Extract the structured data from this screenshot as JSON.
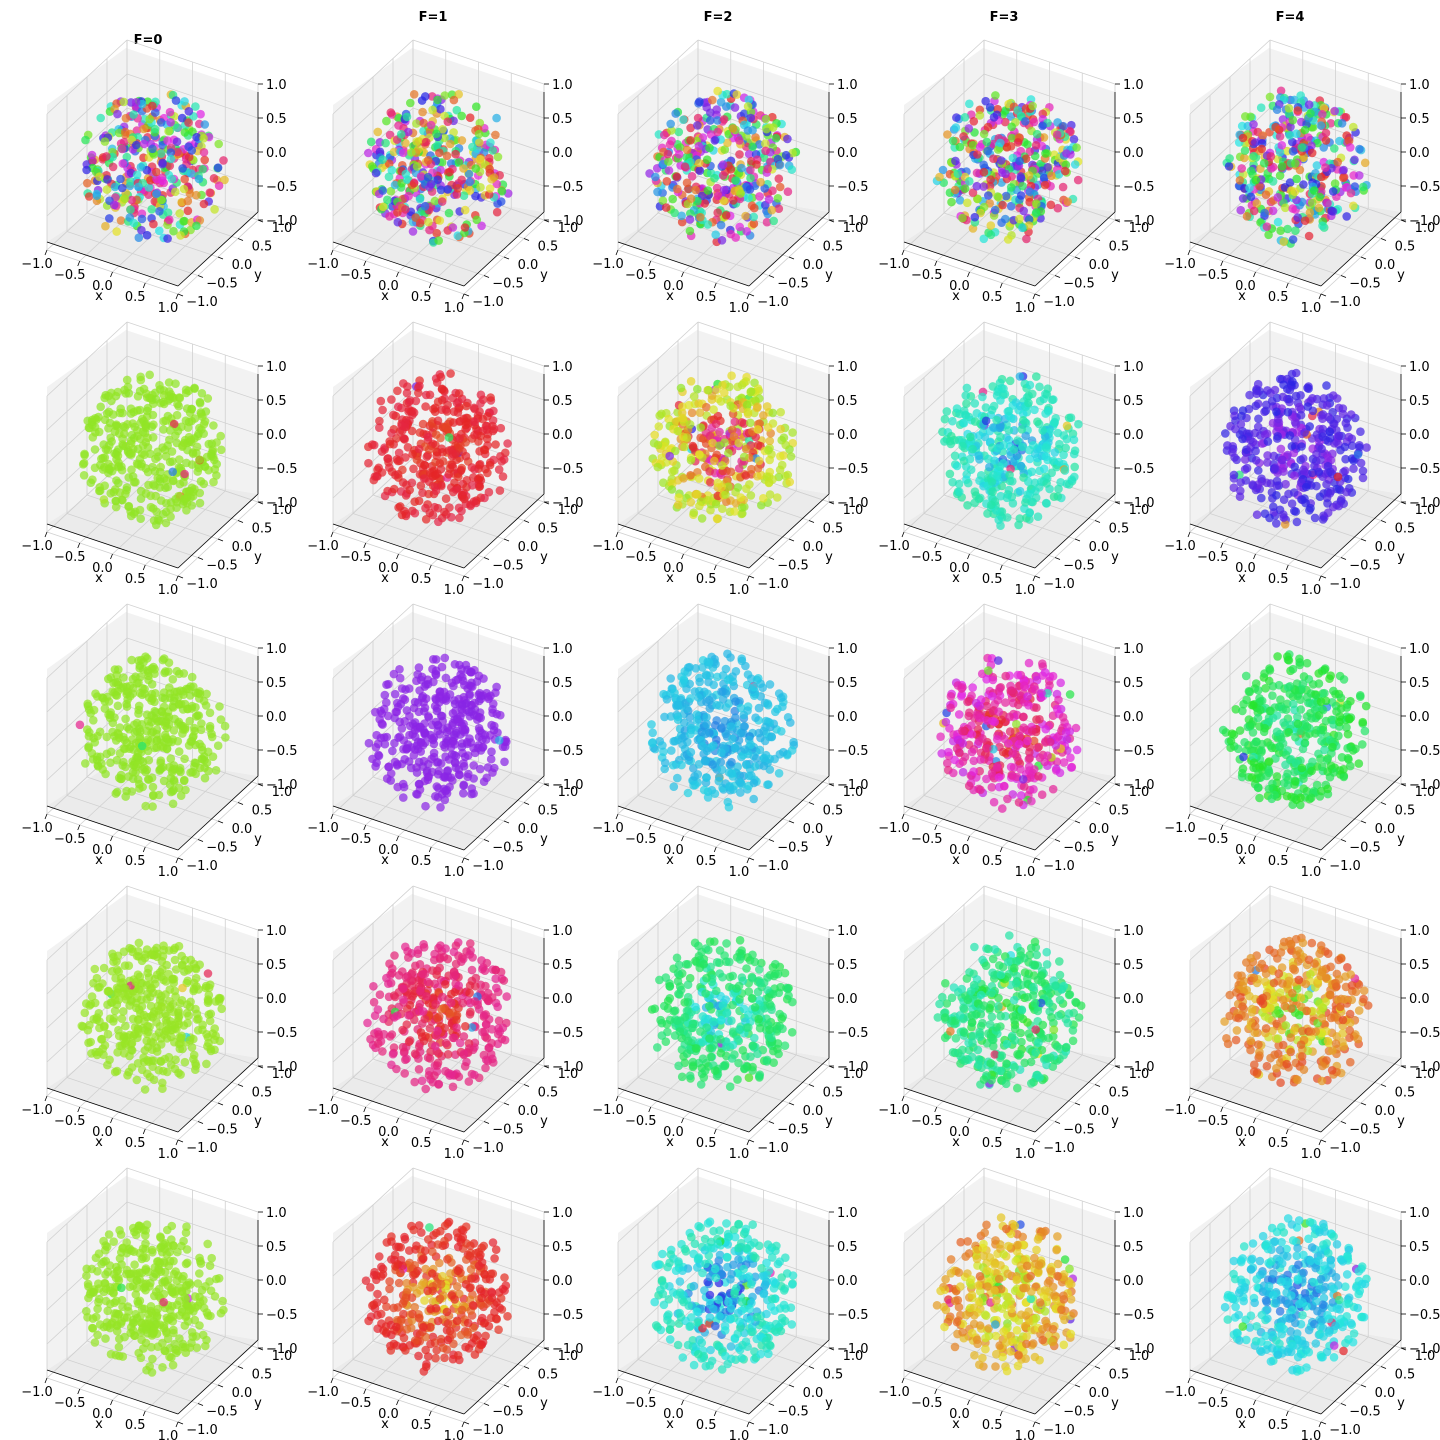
{
  "figure": {
    "column_titles": [
      "F=0",
      "F=1",
      "F=2",
      "F=3",
      "F=4"
    ]
  },
  "chart_data": {
    "type": "scatter",
    "layout": "5x5 grid of 3D scatter plots",
    "projection": "3d",
    "xlabel": "x",
    "ylabel": "y",
    "zlabel": "",
    "xlim": [
      -1.0,
      1.0
    ],
    "ylim": [
      -1.0,
      1.0
    ],
    "zlim": [
      -1.0,
      1.0
    ],
    "x_ticks": [
      "−1.0",
      "−0.5",
      "0.0",
      "0.5",
      "1.0"
    ],
    "y_ticks": [
      "−1.0",
      "−0.5",
      "0.0",
      "0.5",
      "1.0"
    ],
    "z_ticks": [
      "−1.0",
      "−0.5",
      "0.0",
      "0.5",
      "1.0"
    ],
    "grid": true,
    "points_per_panel": 380,
    "point_distribution": "approximately uniform inside unit sphere (radius ~0.97)",
    "panels": [
      {
        "row": 0,
        "col": 0,
        "hue_mode": "random",
        "hue_spread": 1.0
      },
      {
        "row": 0,
        "col": 1,
        "hue_mode": "random",
        "hue_spread": 1.0
      },
      {
        "row": 0,
        "col": 2,
        "hue_mode": "random",
        "hue_spread": 1.0
      },
      {
        "row": 0,
        "col": 3,
        "hue_mode": "random",
        "hue_spread": 1.0
      },
      {
        "row": 0,
        "col": 4,
        "hue_mode": "random",
        "hue_spread": 1.0
      },
      {
        "row": 1,
        "col": 0,
        "hue_mode": "uniform",
        "base_hue": 86,
        "hue_spread": 0.05
      },
      {
        "row": 1,
        "col": 1,
        "hue_mode": "radial",
        "base_hue": 355,
        "center_hue": 15,
        "hue_spread": 0.1
      },
      {
        "row": 1,
        "col": 2,
        "hue_mode": "radial",
        "base_hue": 70,
        "center_hue": 250,
        "hue_spread": 0.3
      },
      {
        "row": 1,
        "col": 3,
        "hue_mode": "radial",
        "base_hue": 165,
        "center_hue": 228,
        "hue_spread": 0.15
      },
      {
        "row": 1,
        "col": 4,
        "hue_mode": "radial",
        "base_hue": 250,
        "center_hue": 292,
        "hue_spread": 0.15
      },
      {
        "row": 2,
        "col": 0,
        "hue_mode": "uniform",
        "base_hue": 86,
        "hue_spread": 0.03
      },
      {
        "row": 2,
        "col": 1,
        "hue_mode": "uniform",
        "base_hue": 272,
        "hue_spread": 0.05
      },
      {
        "row": 2,
        "col": 2,
        "hue_mode": "radial",
        "base_hue": 190,
        "center_hue": 215,
        "hue_spread": 0.08
      },
      {
        "row": 2,
        "col": 3,
        "hue_mode": "radial",
        "base_hue": 310,
        "center_hue": 25,
        "hue_spread": 0.35
      },
      {
        "row": 2,
        "col": 4,
        "hue_mode": "radial",
        "base_hue": 130,
        "center_hue": 170,
        "hue_spread": 0.2
      },
      {
        "row": 3,
        "col": 0,
        "hue_mode": "uniform",
        "base_hue": 84,
        "hue_spread": 0.03
      },
      {
        "row": 3,
        "col": 1,
        "hue_mode": "radial",
        "base_hue": 330,
        "center_hue": 30,
        "hue_spread": 0.08
      },
      {
        "row": 3,
        "col": 2,
        "hue_mode": "radial",
        "base_hue": 140,
        "center_hue": 215,
        "hue_spread": 0.12
      },
      {
        "row": 3,
        "col": 3,
        "hue_mode": "radial",
        "base_hue": 150,
        "center_hue": 110,
        "hue_spread": 0.3
      },
      {
        "row": 3,
        "col": 4,
        "hue_mode": "radial",
        "base_hue": 25,
        "center_hue": 140,
        "hue_spread": 0.25
      },
      {
        "row": 4,
        "col": 0,
        "hue_mode": "uniform",
        "base_hue": 85,
        "hue_spread": 0.03
      },
      {
        "row": 4,
        "col": 1,
        "hue_mode": "radial",
        "base_hue": 0,
        "center_hue": 80,
        "hue_spread": 0.08
      },
      {
        "row": 4,
        "col": 2,
        "hue_mode": "radial",
        "base_hue": 170,
        "center_hue": 265,
        "hue_spread": 0.15
      },
      {
        "row": 4,
        "col": 3,
        "hue_mode": "radial",
        "base_hue": 40,
        "center_hue": 100,
        "hue_spread": 0.35
      },
      {
        "row": 4,
        "col": 4,
        "hue_mode": "radial",
        "base_hue": 180,
        "center_hue": 232,
        "hue_spread": 0.15
      }
    ]
  }
}
